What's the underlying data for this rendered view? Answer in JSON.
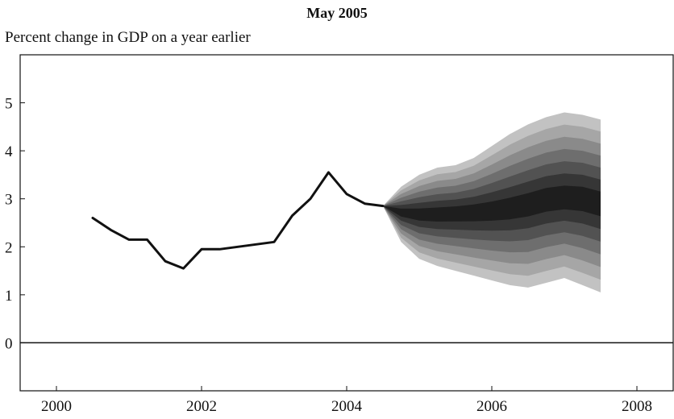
{
  "header": {
    "title": "May 2005",
    "subtitle": "Percent change in GDP on a year earlier"
  },
  "chart_data": {
    "type": "area",
    "title": "May 2005",
    "ylabel": "Percent change in GDP on a year earlier",
    "xlabel": "",
    "xlim": [
      1999.5,
      2008.5
    ],
    "ylim": [
      -1,
      6
    ],
    "x_ticks": [
      2000,
      2002,
      2004,
      2006,
      2008
    ],
    "y_ticks": [
      0,
      1,
      2,
      3,
      4,
      5
    ],
    "zero_line": true,
    "grid": false,
    "history": {
      "x": [
        2000.5,
        2000.75,
        2001,
        2001.25,
        2001.5,
        2001.75,
        2002,
        2002.25,
        2002.5,
        2002.75,
        2003,
        2003.25,
        2003.5,
        2003.75,
        2004,
        2004.25,
        2004.5
      ],
      "y": [
        2.6,
        2.35,
        2.15,
        2.15,
        1.7,
        1.55,
        1.95,
        1.95,
        2.0,
        2.05,
        2.1,
        2.65,
        3.0,
        3.55,
        3.1,
        2.9,
        2.85
      ]
    },
    "fan": {
      "x": [
        2004.5,
        2004.75,
        2005,
        2005.25,
        2005.5,
        2005.75,
        2006,
        2006.25,
        2006.5,
        2006.75,
        2007,
        2007.25,
        2007.5
      ],
      "central": [
        2.85,
        2.72,
        2.68,
        2.68,
        2.7,
        2.72,
        2.75,
        2.8,
        2.88,
        2.98,
        3.02,
        3.0,
        2.9
      ],
      "upper": [
        2.85,
        3.25,
        3.5,
        3.65,
        3.7,
        3.85,
        4.1,
        4.35,
        4.55,
        4.7,
        4.8,
        4.75,
        4.65
      ],
      "lower": [
        2.85,
        2.1,
        1.75,
        1.6,
        1.5,
        1.4,
        1.3,
        1.2,
        1.15,
        1.25,
        1.35,
        1.2,
        1.05
      ],
      "band_colors": [
        "#c2c2c2",
        "#a6a6a6",
        "#8a8a8a",
        "#6e6e6e",
        "#525252",
        "#363636",
        "#1e1e1e"
      ]
    }
  }
}
